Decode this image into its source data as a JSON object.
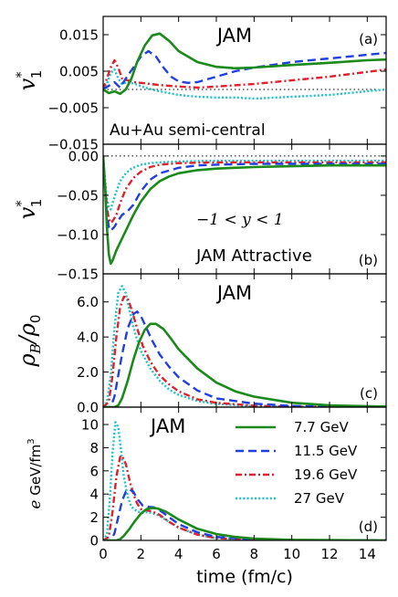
{
  "figure": {
    "xlabel": "time (fm/c)",
    "xlim": [
      0,
      15
    ],
    "xticks": [
      0,
      2,
      4,
      6,
      8,
      10,
      12,
      14
    ],
    "legend": {
      "placement": "panel-d-right",
      "entries": [
        {
          "name": "7.7 GeV",
          "color": "#1a8a1a",
          "style": "solid"
        },
        {
          "name": "11.5 GeV",
          "color": "#1f3fe0",
          "style": "dashed"
        },
        {
          "name": "19.6 GeV",
          "color": "#e0202a",
          "style": "dashdot"
        },
        {
          "name": "27 GeV",
          "color": "#19c3c9",
          "style": "dotted"
        }
      ]
    }
  },
  "chart_data": [
    {
      "type": "line",
      "panel": "(a)",
      "ylabel_main": "v",
      "ylabel_sup": "*",
      "ylabel_sub": "1",
      "ylim": [
        -0.015,
        0.02
      ],
      "yticks": [
        0.015,
        0.005,
        -0.005,
        -0.015
      ],
      "ytick_labels": [
        "0.015",
        "0.005",
        "−0.005",
        "−0.015"
      ],
      "zero_line": true,
      "annotations": [
        {
          "text": "JAM",
          "pos": "top-center"
        },
        {
          "text": "Au+Au semi-central",
          "pos": "bottom-left"
        }
      ],
      "series": [
        {
          "name": "7.7 GeV",
          "x": [
            0,
            0.3,
            0.6,
            0.9,
            1.2,
            1.5,
            1.8,
            2.2,
            2.6,
            3.0,
            3.5,
            4.0,
            5.0,
            6.0,
            7.0,
            8.0,
            10.0,
            12.0,
            14.0,
            15.0
          ],
          "y": [
            0.0,
            -0.001,
            -0.0005,
            -0.0012,
            0.0,
            0.003,
            0.0075,
            0.012,
            0.0148,
            0.0153,
            0.0133,
            0.0105,
            0.0075,
            0.0062,
            0.0058,
            0.006,
            0.0067,
            0.0073,
            0.008,
            0.0082
          ]
        },
        {
          "name": "11.5 GeV",
          "x": [
            0,
            0.3,
            0.6,
            0.9,
            1.2,
            1.6,
            2.0,
            2.4,
            2.8,
            3.2,
            3.6,
            4.0,
            4.5,
            5.0,
            6.0,
            7.0,
            8.0,
            10.0,
            12.0,
            14.0,
            15.0
          ],
          "y": [
            0.0,
            0.001,
            0.002,
            0.0005,
            0.003,
            0.006,
            0.009,
            0.0105,
            0.009,
            0.006,
            0.0035,
            0.0022,
            0.0018,
            0.002,
            0.0035,
            0.005,
            0.006,
            0.0075,
            0.0085,
            0.0095,
            0.01
          ]
        },
        {
          "name": "19.6 GeV",
          "x": [
            0,
            0.2,
            0.4,
            0.6,
            0.8,
            1.0,
            1.3,
            1.6,
            2.0,
            2.5,
            3.0,
            4.0,
            5.0,
            6.0,
            8.0,
            10.0,
            12.0,
            14.0,
            15.0
          ],
          "y": [
            0.0,
            0.003,
            0.006,
            0.008,
            0.006,
            0.003,
            0.0025,
            0.002,
            0.0018,
            0.0015,
            0.0012,
            0.0008,
            0.0005,
            0.0008,
            0.0015,
            0.0025,
            0.0035,
            0.0048,
            0.0055
          ]
        },
        {
          "name": "27 GeV",
          "x": [
            0,
            0.2,
            0.4,
            0.6,
            0.8,
            1.0,
            1.3,
            1.7,
            2.2,
            3.0,
            4.0,
            5.0,
            6.0,
            7.0,
            8.0,
            10.0,
            12.0,
            14.0,
            15.0
          ],
          "y": [
            0.0,
            0.0015,
            0.0045,
            0.0055,
            0.003,
            0.0015,
            0.002,
            0.0015,
            0.0005,
            -0.0005,
            -0.0015,
            -0.002,
            -0.0022,
            -0.0022,
            -0.0025,
            -0.002,
            -0.0015,
            -0.0005,
            0.0
          ]
        }
      ]
    },
    {
      "type": "line",
      "panel": "(b)",
      "ylabel_main": "v",
      "ylabel_sup": "*",
      "ylabel_sub": "1",
      "ylim": [
        -0.15,
        0.015
      ],
      "yticks": [
        0.0,
        -0.05,
        -0.1,
        -0.15
      ],
      "ytick_labels": [
        "0.00",
        "−0.05",
        "−0.10",
        "−0.15"
      ],
      "zero_line": true,
      "annotations": [
        {
          "text": "−1 < y < 1",
          "pos": "middle-right"
        },
        {
          "text": "JAM Attractive",
          "pos": "bottom-right"
        }
      ],
      "series": [
        {
          "name": "7.7 GeV",
          "x": [
            0,
            0.1,
            0.2,
            0.3,
            0.4,
            0.5,
            0.7,
            1.0,
            1.3,
            1.6,
            2.0,
            2.5,
            3.0,
            3.5,
            4.0,
            5.0,
            6.0,
            7.0,
            8.0,
            10.0,
            12.0,
            15.0
          ],
          "y": [
            0.0,
            -0.04,
            -0.09,
            -0.125,
            -0.137,
            -0.133,
            -0.12,
            -0.105,
            -0.09,
            -0.075,
            -0.058,
            -0.042,
            -0.032,
            -0.026,
            -0.022,
            -0.018,
            -0.016,
            -0.015,
            -0.014,
            -0.013,
            -0.012,
            -0.012
          ]
        },
        {
          "name": "11.5 GeV",
          "x": [
            0,
            0.1,
            0.2,
            0.3,
            0.4,
            0.6,
            0.8,
            1.0,
            1.3,
            1.6,
            2.0,
            2.5,
            3.0,
            4.0,
            5.0,
            6.0,
            8.0,
            10.0,
            12.0,
            15.0
          ],
          "y": [
            0.0,
            -0.04,
            -0.075,
            -0.09,
            -0.095,
            -0.09,
            -0.082,
            -0.075,
            -0.07,
            -0.062,
            -0.045,
            -0.03,
            -0.022,
            -0.015,
            -0.012,
            -0.011,
            -0.01,
            -0.01,
            -0.01,
            -0.01
          ]
        },
        {
          "name": "19.6 GeV",
          "x": [
            0,
            0.1,
            0.2,
            0.3,
            0.4,
            0.5,
            0.7,
            0.9,
            1.2,
            1.6,
            2.0,
            2.5,
            3.0,
            4.0,
            6.0,
            8.0,
            10.0,
            12.0,
            15.0
          ],
          "y": [
            0.0,
            -0.035,
            -0.065,
            -0.08,
            -0.085,
            -0.083,
            -0.075,
            -0.06,
            -0.042,
            -0.028,
            -0.02,
            -0.014,
            -0.011,
            -0.009,
            -0.008,
            -0.008,
            -0.008,
            -0.008,
            -0.008
          ]
        },
        {
          "name": "27 GeV",
          "x": [
            0,
            0.1,
            0.2,
            0.3,
            0.4,
            0.5,
            0.7,
            0.9,
            1.2,
            1.5,
            2.0,
            2.5,
            3.0,
            4.0,
            6.0,
            8.0,
            10.0,
            12.0,
            15.0
          ],
          "y": [
            0.0,
            -0.03,
            -0.055,
            -0.065,
            -0.068,
            -0.06,
            -0.045,
            -0.032,
            -0.022,
            -0.016,
            -0.011,
            -0.009,
            -0.008,
            -0.007,
            -0.006,
            -0.006,
            -0.006,
            -0.006,
            -0.006
          ]
        }
      ]
    },
    {
      "type": "line",
      "panel": "(c)",
      "ylabel_main": "ρ",
      "ylabel_sub": "B",
      "ylabel_tail": "/ρ",
      "ylabel_tail_sub": "0",
      "ylim": [
        0,
        7.6
      ],
      "yticks": [
        0.0,
        2.0,
        4.0,
        6.0
      ],
      "ytick_labels": [
        "0.0",
        "2.0",
        "4.0",
        "6.0"
      ],
      "annotations": [
        {
          "text": "JAM",
          "pos": "top-center"
        }
      ],
      "series": [
        {
          "name": "7.7 GeV",
          "x": [
            0,
            0.6,
            0.8,
            1.0,
            1.3,
            1.6,
            1.9,
            2.2,
            2.5,
            2.8,
            3.2,
            3.6,
            4.0,
            5.0,
            6.0,
            7.0,
            8.0,
            10.0,
            12.0,
            15.0
          ],
          "y": [
            0.0,
            0.0,
            0.1,
            0.5,
            1.5,
            2.7,
            3.7,
            4.4,
            4.75,
            4.75,
            4.45,
            3.9,
            3.3,
            2.2,
            1.4,
            0.9,
            0.6,
            0.25,
            0.1,
            0.03
          ]
        },
        {
          "name": "11.5 GeV",
          "x": [
            0,
            0.4,
            0.6,
            0.8,
            1.0,
            1.3,
            1.6,
            1.8,
            2.0,
            2.3,
            2.6,
            3.0,
            3.5,
            4.0,
            5.0,
            6.0,
            8.0,
            10.0,
            12.0,
            15.0
          ],
          "y": [
            0.0,
            0.0,
            0.6,
            1.8,
            3.0,
            4.5,
            5.3,
            5.45,
            5.2,
            4.5,
            3.8,
            3.0,
            2.3,
            1.7,
            0.95,
            0.5,
            0.2,
            0.07,
            0.03,
            0.01
          ]
        },
        {
          "name": "19.6 GeV",
          "x": [
            0,
            0.3,
            0.5,
            0.7,
            0.9,
            1.1,
            1.3,
            1.5,
            1.8,
            2.1,
            2.5,
            3.0,
            3.5,
            4.0,
            5.0,
            6.0,
            8.0,
            10.0,
            15.0
          ],
          "y": [
            0.0,
            0.3,
            1.8,
            4.0,
            5.7,
            6.3,
            6.2,
            5.6,
            4.5,
            3.5,
            2.6,
            1.8,
            1.3,
            0.9,
            0.45,
            0.25,
            0.08,
            0.03,
            0.0
          ]
        },
        {
          "name": "27 GeV",
          "x": [
            0,
            0.2,
            0.4,
            0.6,
            0.8,
            1.0,
            1.2,
            1.4,
            1.7,
            2.0,
            2.5,
            3.0,
            3.5,
            4.0,
            5.0,
            6.0,
            8.0,
            10.0,
            15.0
          ],
          "y": [
            0.0,
            0.3,
            1.8,
            4.5,
            6.5,
            6.9,
            6.5,
            5.5,
            4.2,
            3.2,
            2.2,
            1.5,
            1.0,
            0.7,
            0.35,
            0.18,
            0.05,
            0.02,
            0.0
          ]
        }
      ]
    },
    {
      "type": "line",
      "panel": "(d)",
      "ylabel_main": "e",
      "ylabel_rest": " GeV/fm",
      "ylabel_rest_sup": "3",
      "ylim": [
        0,
        11.5
      ],
      "yticks": [
        0,
        2,
        4,
        6,
        8,
        10
      ],
      "ytick_labels": [
        "0",
        "2",
        "4",
        "6",
        "8",
        "10"
      ],
      "annotations": [
        {
          "text": "JAM",
          "pos": "top-left"
        }
      ],
      "series": [
        {
          "name": "7.7 GeV",
          "x": [
            0,
            0.7,
            0.9,
            1.1,
            1.4,
            1.7,
            2.0,
            2.3,
            2.6,
            2.9,
            3.3,
            3.7,
            4.0,
            5.0,
            6.0,
            7.0,
            8.0,
            10.0,
            12.0,
            15.0
          ],
          "y": [
            0.0,
            0.0,
            0.1,
            0.4,
            1.0,
            1.7,
            2.3,
            2.7,
            2.8,
            2.75,
            2.5,
            2.1,
            1.8,
            1.0,
            0.55,
            0.3,
            0.15,
            0.05,
            0.02,
            0.0
          ]
        },
        {
          "name": "11.5 GeV",
          "x": [
            0,
            0.4,
            0.6,
            0.8,
            1.0,
            1.2,
            1.4,
            1.6,
            1.8,
            2.1,
            2.4,
            2.7,
            3.0,
            3.5,
            4.0,
            5.0,
            6.0,
            8.0,
            10.0,
            15.0
          ],
          "y": [
            0.0,
            0.0,
            0.6,
            2.0,
            3.4,
            4.2,
            4.4,
            4.2,
            3.6,
            3.0,
            2.9,
            2.85,
            2.6,
            2.0,
            1.4,
            0.7,
            0.3,
            0.08,
            0.02,
            0.0
          ]
        },
        {
          "name": "19.6 GeV",
          "x": [
            0,
            0.3,
            0.5,
            0.7,
            0.9,
            1.0,
            1.2,
            1.4,
            1.6,
            1.8,
            2.0,
            2.3,
            2.6,
            3.0,
            3.5,
            4.0,
            5.0,
            6.0,
            8.0,
            15.0
          ],
          "y": [
            0.0,
            0.3,
            2.5,
            5.5,
            7.2,
            7.3,
            6.6,
            5.2,
            4.0,
            3.2,
            2.7,
            2.6,
            2.5,
            2.2,
            1.6,
            1.1,
            0.5,
            0.2,
            0.05,
            0.0
          ]
        },
        {
          "name": "27 GeV",
          "x": [
            0,
            0.2,
            0.35,
            0.5,
            0.65,
            0.8,
            0.95,
            1.1,
            1.3,
            1.5,
            1.8,
            2.1,
            2.4,
            2.7,
            3.0,
            3.5,
            4.0,
            5.0,
            6.0,
            8.0,
            15.0
          ],
          "y": [
            0.0,
            0.5,
            3.5,
            7.5,
            10.2,
            9.8,
            7.8,
            5.5,
            3.8,
            2.9,
            2.5,
            2.4,
            2.45,
            2.3,
            2.1,
            1.6,
            1.1,
            0.5,
            0.2,
            0.05,
            0.0
          ]
        }
      ]
    }
  ]
}
